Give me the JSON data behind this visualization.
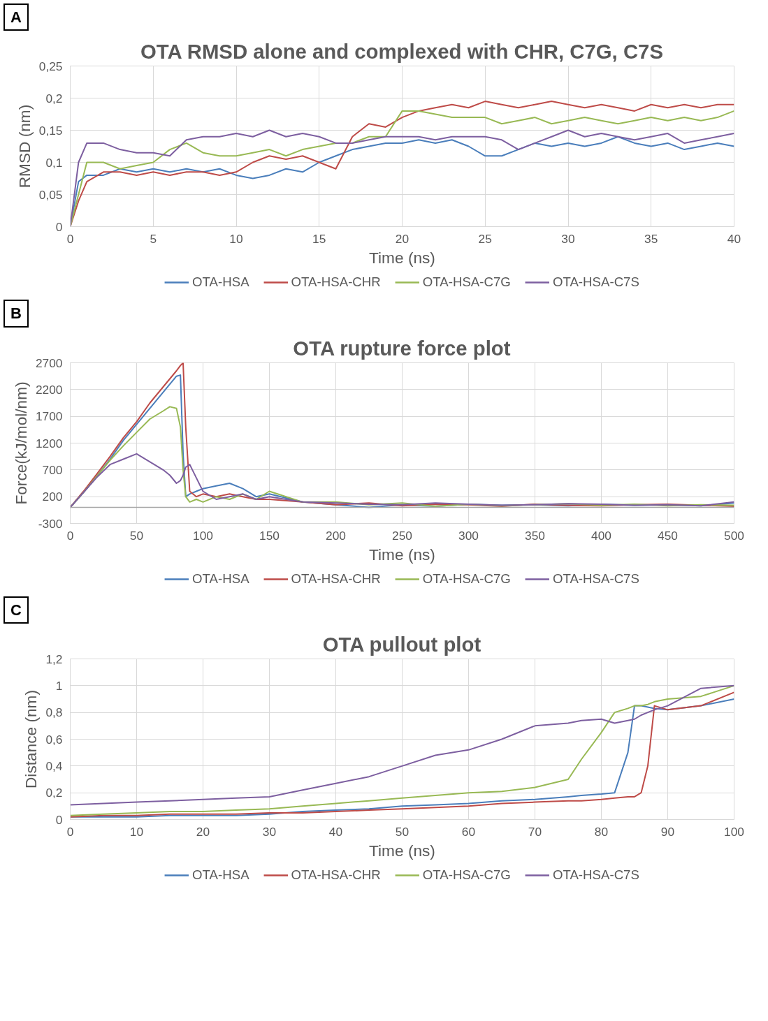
{
  "chart_data": [
    {
      "type": "line",
      "title": "OTA RMSD alone and complexed with CHR, C7G, C7S",
      "annotations": [
        "A"
      ],
      "xlabel": "Time (ns)",
      "ylabel": "RMSD (nm)",
      "grid": true,
      "legend": "bottom",
      "line_style": "solid",
      "x": [
        0,
        0.5,
        1,
        2,
        3,
        4,
        5,
        6,
        7,
        8,
        9,
        10,
        11,
        12,
        13,
        14,
        15,
        16,
        17,
        18,
        19,
        20,
        21,
        22,
        23,
        24,
        25,
        26,
        27,
        28,
        29,
        30,
        31,
        32,
        33,
        34,
        35,
        36,
        37,
        38,
        39,
        40
      ],
      "xlim": [
        0,
        40
      ],
      "xticks": [
        0,
        5,
        10,
        15,
        20,
        25,
        30,
        35,
        40
      ],
      "ylim": [
        0,
        0.25
      ],
      "yticks": [
        0,
        {
          "value": 0.05,
          "label": "0,05"
        },
        {
          "value": 0.1,
          "label": "0,1"
        },
        {
          "value": 0.15,
          "label": "0,15"
        },
        {
          "value": 0.2,
          "label": "0,2"
        },
        {
          "value": 0.25,
          "label": "0,25"
        }
      ],
      "series": [
        {
          "name": "OTA-HSA",
          "color": "#4a7ebb",
          "values": [
            0,
            0.07,
            0.08,
            0.08,
            0.09,
            0.085,
            0.09,
            0.085,
            0.09,
            0.085,
            0.09,
            0.08,
            0.075,
            0.08,
            0.09,
            0.085,
            0.1,
            0.11,
            0.12,
            0.125,
            0.13,
            0.13,
            0.135,
            0.13,
            0.135,
            0.125,
            0.11,
            0.11,
            0.12,
            0.13,
            0.125,
            0.13,
            0.125,
            0.13,
            0.14,
            0.13,
            0.125,
            0.13,
            0.12,
            0.125,
            0.13,
            0.125
          ]
        },
        {
          "name": "OTA-HSA-CHR",
          "color": "#be4b48",
          "values": [
            0,
            0.04,
            0.07,
            0.085,
            0.085,
            0.08,
            0.085,
            0.08,
            0.085,
            0.085,
            0.08,
            0.085,
            0.1,
            0.11,
            0.105,
            0.11,
            0.1,
            0.09,
            0.14,
            0.16,
            0.155,
            0.17,
            0.18,
            0.185,
            0.19,
            0.185,
            0.195,
            0.19,
            0.185,
            0.19,
            0.195,
            0.19,
            0.185,
            0.19,
            0.185,
            0.18,
            0.19,
            0.185,
            0.19,
            0.185,
            0.19,
            0.19
          ]
        },
        {
          "name": "OTA-HSA-C7G",
          "color": "#98b954",
          "values": [
            0,
            0.05,
            0.1,
            0.1,
            0.09,
            0.095,
            0.1,
            0.12,
            0.13,
            0.115,
            0.11,
            0.11,
            0.115,
            0.12,
            0.11,
            0.12,
            0.125,
            0.13,
            0.13,
            0.14,
            0.14,
            0.18,
            0.18,
            0.175,
            0.17,
            0.17,
            0.17,
            0.16,
            0.165,
            0.17,
            0.16,
            0.165,
            0.17,
            0.165,
            0.16,
            0.165,
            0.17,
            0.165,
            0.17,
            0.165,
            0.17,
            0.18
          ]
        },
        {
          "name": "OTA-HSA-C7S",
          "color": "#7d5fa0",
          "values": [
            0,
            0.1,
            0.13,
            0.13,
            0.12,
            0.115,
            0.115,
            0.11,
            0.135,
            0.14,
            0.14,
            0.145,
            0.14,
            0.15,
            0.14,
            0.145,
            0.14,
            0.13,
            0.13,
            0.135,
            0.14,
            0.14,
            0.14,
            0.135,
            0.14,
            0.14,
            0.14,
            0.135,
            0.12,
            0.13,
            0.14,
            0.15,
            0.14,
            0.145,
            0.14,
            0.135,
            0.14,
            0.145,
            0.13,
            0.135,
            0.14,
            0.145
          ]
        }
      ]
    },
    {
      "type": "line",
      "title": "OTA rupture force plot",
      "annotations": [
        "B"
      ],
      "xlabel": "Time (ns)",
      "ylabel": "Force(kJ/mol/nm)",
      "grid": true,
      "legend": "bottom",
      "line_style": "solid",
      "x": [
        0,
        10,
        20,
        30,
        40,
        50,
        60,
        70,
        75,
        80,
        83,
        85,
        87,
        90,
        95,
        100,
        110,
        120,
        130,
        140,
        150,
        175,
        200,
        225,
        250,
        275,
        300,
        325,
        350,
        375,
        400,
        425,
        450,
        475,
        500
      ],
      "xlim": [
        0,
        500
      ],
      "xticks": [
        0,
        50,
        100,
        150,
        200,
        250,
        300,
        350,
        400,
        450,
        500
      ],
      "ylim": [
        -300,
        2700
      ],
      "yticks": [
        -300,
        200,
        700,
        1200,
        1700,
        2200,
        2700
      ],
      "ref_lines": [
        {
          "axis": "y",
          "value": 0,
          "color": "#a6a6a6"
        }
      ],
      "series": [
        {
          "name": "OTA-HSA",
          "color": "#4a7ebb",
          "values": [
            0,
            280,
            580,
            900,
            1250,
            1550,
            1850,
            2150,
            2300,
            2450,
            2470,
            1000,
            200,
            250,
            300,
            350,
            400,
            450,
            350,
            200,
            250,
            100,
            50,
            0,
            50,
            20,
            60,
            40,
            50,
            30,
            60,
            40,
            50,
            30,
            80
          ]
        },
        {
          "name": "OTA-HSA-CHR",
          "color": "#be4b48",
          "values": [
            0,
            300,
            620,
            950,
            1300,
            1600,
            1950,
            2250,
            2400,
            2550,
            2650,
            2700,
            1500,
            300,
            200,
            250,
            200,
            250,
            200,
            150,
            150,
            100,
            50,
            80,
            30,
            60,
            50,
            20,
            60,
            40,
            30,
            50,
            60,
            40,
            20
          ]
        },
        {
          "name": "OTA-HSA-C7G",
          "color": "#98b954",
          "values": [
            0,
            280,
            580,
            880,
            1150,
            1400,
            1650,
            1800,
            1880,
            1850,
            1500,
            700,
            200,
            100,
            150,
            100,
            200,
            150,
            250,
            150,
            300,
            100,
            100,
            50,
            80,
            20,
            60,
            30,
            50,
            70,
            40,
            60,
            30,
            50,
            40
          ]
        },
        {
          "name": "OTA-HSA-C7S",
          "color": "#7d5fa0",
          "values": [
            0,
            280,
            560,
            800,
            900,
            1000,
            850,
            700,
            600,
            450,
            500,
            600,
            750,
            800,
            550,
            300,
            150,
            200,
            250,
            150,
            200,
            100,
            80,
            60,
            50,
            80,
            60,
            40,
            50,
            70,
            60,
            40,
            50,
            30,
            100
          ]
        }
      ]
    },
    {
      "type": "line",
      "title": "OTA pullout plot",
      "annotations": [
        "C"
      ],
      "xlabel": "Time (ns)",
      "ylabel": "Distance (nm)",
      "grid": true,
      "legend": "bottom",
      "line_style": "solid",
      "x": [
        0,
        5,
        10,
        15,
        20,
        25,
        30,
        35,
        40,
        45,
        50,
        55,
        60,
        65,
        70,
        75,
        77,
        80,
        82,
        84,
        85,
        86,
        87,
        88,
        90,
        95,
        100
      ],
      "xlim": [
        0,
        100
      ],
      "xticks": [
        0,
        10,
        20,
        30,
        40,
        50,
        60,
        70,
        80,
        90,
        100
      ],
      "ylim": [
        0,
        1.2
      ],
      "yticks": [
        0,
        {
          "value": 0.2,
          "label": "0,2"
        },
        {
          "value": 0.4,
          "label": "0,4"
        },
        {
          "value": 0.6,
          "label": "0,6"
        },
        {
          "value": 0.8,
          "label": "0,8"
        },
        1,
        {
          "value": 1.2,
          "label": "1,2"
        }
      ],
      "series": [
        {
          "name": "OTA-HSA",
          "color": "#4a7ebb",
          "values": [
            0.02,
            0.02,
            0.02,
            0.03,
            0.03,
            0.03,
            0.04,
            0.06,
            0.07,
            0.08,
            0.1,
            0.11,
            0.12,
            0.14,
            0.15,
            0.17,
            0.18,
            0.19,
            0.2,
            0.5,
            0.85,
            0.85,
            0.84,
            0.83,
            0.82,
            0.85,
            0.9
          ]
        },
        {
          "name": "OTA-HSA-CHR",
          "color": "#be4b48",
          "values": [
            0.02,
            0.03,
            0.03,
            0.04,
            0.04,
            0.04,
            0.05,
            0.05,
            0.06,
            0.07,
            0.08,
            0.09,
            0.1,
            0.12,
            0.13,
            0.14,
            0.14,
            0.15,
            0.16,
            0.17,
            0.17,
            0.2,
            0.4,
            0.85,
            0.82,
            0.85,
            0.95
          ]
        },
        {
          "name": "OTA-HSA-C7G",
          "color": "#98b954",
          "values": [
            0.03,
            0.04,
            0.05,
            0.06,
            0.06,
            0.07,
            0.08,
            0.1,
            0.12,
            0.14,
            0.16,
            0.18,
            0.2,
            0.21,
            0.24,
            0.3,
            0.45,
            0.65,
            0.8,
            0.83,
            0.85,
            0.85,
            0.86,
            0.88,
            0.9,
            0.92,
            1.0
          ]
        },
        {
          "name": "OTA-HSA-C7S",
          "color": "#7d5fa0",
          "values": [
            0.11,
            0.12,
            0.13,
            0.14,
            0.15,
            0.16,
            0.17,
            0.22,
            0.27,
            0.32,
            0.4,
            0.48,
            0.52,
            0.6,
            0.7,
            0.72,
            0.74,
            0.75,
            0.72,
            0.74,
            0.75,
            0.78,
            0.8,
            0.82,
            0.85,
            0.98,
            1.0
          ]
        }
      ]
    }
  ]
}
